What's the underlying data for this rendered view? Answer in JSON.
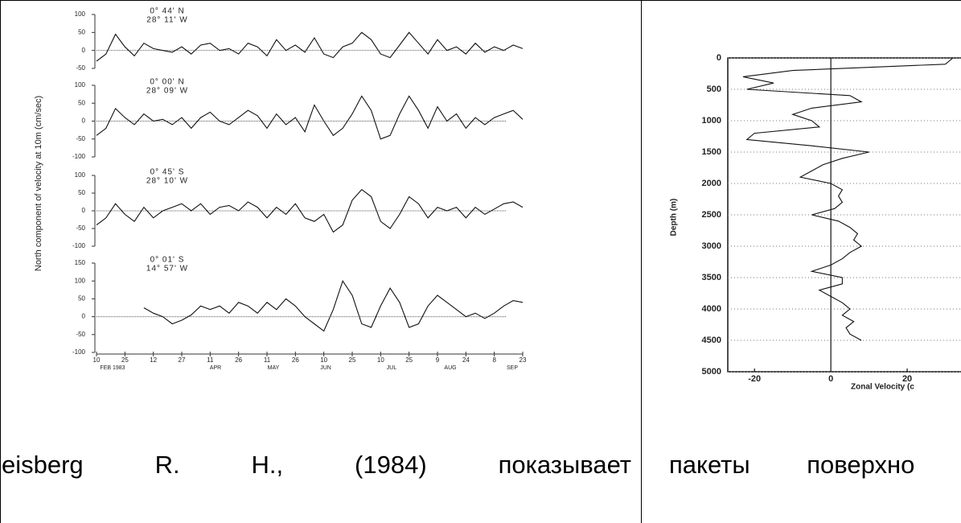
{
  "figures": [
    {
      "ylabel": "North component of velocity at 10m (cm/sec)",
      "x": [
        0,
        5,
        10,
        15,
        20,
        25,
        30,
        35,
        40,
        45,
        50,
        55,
        60,
        65,
        70,
        75,
        80,
        85,
        90,
        95,
        100,
        105,
        110,
        115,
        120,
        125,
        130,
        135,
        140,
        145,
        150,
        155,
        160,
        165,
        170,
        175,
        180,
        185,
        190,
        195,
        200,
        205,
        210,
        215,
        220,
        225
      ],
      "xticks": [
        {
          "value": 0,
          "label": "10"
        },
        {
          "value": 15,
          "label": "25"
        },
        {
          "value": 30,
          "label": "12"
        },
        {
          "value": 45,
          "label": "27"
        },
        {
          "value": 60,
          "label": "11"
        },
        {
          "value": 75,
          "label": "26"
        },
        {
          "value": 90,
          "label": "11"
        },
        {
          "value": 105,
          "label": "26"
        },
        {
          "value": 120,
          "label": "10"
        },
        {
          "value": 135,
          "label": "25"
        },
        {
          "value": 150,
          "label": "10"
        },
        {
          "value": 165,
          "label": "25"
        },
        {
          "value": 180,
          "label": "9"
        },
        {
          "value": 195,
          "label": "24"
        },
        {
          "value": 210,
          "label": "8"
        },
        {
          "value": 225,
          "label": "23"
        }
      ],
      "months": [
        "FEB 1983",
        "APR",
        "MAY",
        "JUN",
        "JUL",
        "AUG",
        "SEP"
      ],
      "panels": [
        {
          "title": [
            "0° 44' N",
            "28° 11' W"
          ],
          "ylim": [
            -50,
            100
          ],
          "yticks": [
            100,
            50,
            0,
            -50
          ],
          "values": [
            -30,
            -10,
            45,
            10,
            -15,
            20,
            5,
            0,
            -5,
            10,
            -10,
            15,
            20,
            0,
            5,
            -10,
            20,
            10,
            -15,
            30,
            0,
            15,
            -5,
            35,
            -10,
            -20,
            10,
            20,
            50,
            30,
            -10,
            -20,
            15,
            50,
            20,
            -10,
            30,
            0,
            10,
            -10,
            20,
            -5,
            10,
            0,
            15,
            5
          ]
        },
        {
          "title": [
            "0° 00' N",
            "28° 09' W"
          ],
          "ylim": [
            -100,
            100
          ],
          "yticks": [
            100,
            50,
            0,
            -50,
            -100
          ],
          "values": [
            -40,
            -20,
            35,
            10,
            -10,
            20,
            0,
            5,
            -10,
            10,
            -20,
            10,
            25,
            0,
            -10,
            10,
            30,
            15,
            -20,
            20,
            -10,
            10,
            -30,
            45,
            0,
            -40,
            -20,
            20,
            70,
            30,
            -50,
            -40,
            20,
            70,
            30,
            -20,
            40,
            0,
            20,
            -20,
            10,
            -10,
            10,
            20,
            30,
            5
          ]
        },
        {
          "title": [
            "0° 45' S",
            "28° 10' W"
          ],
          "ylim": [
            -100,
            100
          ],
          "yticks": [
            100,
            50,
            0,
            -50,
            -100
          ],
          "values": [
            -40,
            -20,
            20,
            -10,
            -30,
            10,
            -20,
            0,
            10,
            20,
            0,
            20,
            -10,
            10,
            15,
            0,
            25,
            10,
            -20,
            10,
            -10,
            20,
            -20,
            -30,
            -10,
            -60,
            -40,
            30,
            60,
            40,
            -30,
            -50,
            -10,
            40,
            20,
            -20,
            10,
            0,
            10,
            -20,
            10,
            -10,
            5,
            20,
            25,
            10
          ]
        },
        {
          "title": [
            "0° 01' S",
            "14° 57' W"
          ],
          "ylim": [
            -100,
            150
          ],
          "yticks": [
            150,
            100,
            50,
            0,
            -50,
            -100
          ],
          "values": [
            null,
            null,
            null,
            null,
            null,
            25,
            10,
            0,
            -20,
            -10,
            5,
            30,
            20,
            30,
            10,
            40,
            30,
            10,
            40,
            20,
            50,
            30,
            0,
            -20,
            -40,
            20,
            100,
            60,
            -20,
            -30,
            30,
            80,
            40,
            -30,
            -20,
            30,
            60,
            40,
            20,
            0,
            10,
            -5,
            10,
            30,
            45,
            40
          ]
        }
      ]
    },
    {
      "type": "line",
      "ylabel": "Depth (m)",
      "xlabel": "Zonal Velocity (c",
      "ylim": [
        0,
        5000
      ],
      "yticks": [
        0,
        500,
        1000,
        1500,
        2000,
        2500,
        3000,
        3500,
        4000,
        4500,
        5000
      ],
      "xlim": [
        -27,
        40
      ],
      "xticks": [
        -20,
        0,
        20
      ],
      "depth": [
        0,
        100,
        200,
        300,
        400,
        500,
        600,
        700,
        800,
        900,
        1000,
        1100,
        1200,
        1300,
        1400,
        1500,
        1600,
        1700,
        1800,
        1900,
        2000,
        2100,
        2200,
        2300,
        2400,
        2500,
        2600,
        2700,
        2800,
        2900,
        3000,
        3100,
        3200,
        3300,
        3400,
        3500,
        3600,
        3700,
        3800,
        3900,
        4000,
        4100,
        4200,
        4300,
        4400,
        4500
      ],
      "velocity": [
        32,
        30,
        -10,
        -23,
        -15,
        -22,
        5,
        8,
        -5,
        -10,
        -5,
        -3,
        -20,
        -22,
        -5,
        10,
        3,
        -2,
        -5,
        -8,
        0,
        3,
        2,
        3,
        1,
        -5,
        2,
        5,
        7,
        6,
        8,
        5,
        3,
        0,
        -5,
        3,
        3,
        -3,
        0,
        3,
        5,
        3,
        6,
        4,
        5,
        8
      ]
    }
  ],
  "paragraphs": [
    "eisberg R. H., (1984) показывает",
    "пакеты поверхно"
  ]
}
